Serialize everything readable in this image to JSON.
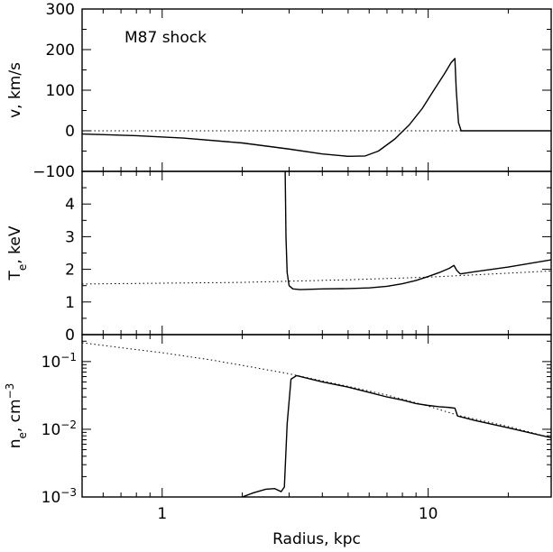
{
  "chart_data": [
    {
      "type": "line",
      "panel": "velocity",
      "annotation": "M87 shock",
      "ylabel": "v, km/s",
      "xscale": "log",
      "xlim": [
        0.5,
        29
      ],
      "ylim": [
        -100,
        300
      ],
      "yticks": [
        -100,
        0,
        100,
        200,
        300
      ],
      "series": [
        {
          "style": "solid",
          "x": [
            0.5,
            0.8,
            1.2,
            2.0,
            3.0,
            4.0,
            5.0,
            5.8,
            6.5,
            7.5,
            8.5,
            9.5,
            10.5,
            11.5,
            12.2,
            12.6,
            12.75,
            13.0,
            13.3,
            15,
            20,
            29
          ],
          "y": [
            -8,
            -12,
            -18,
            -30,
            -45,
            -57,
            -63,
            -62,
            -50,
            -20,
            15,
            55,
            100,
            140,
            168,
            178,
            100,
            20,
            0,
            0,
            0,
            0
          ]
        },
        {
          "style": "dotted",
          "x": [
            0.5,
            29
          ],
          "y": [
            0,
            0
          ]
        }
      ]
    },
    {
      "type": "line",
      "panel": "temperature",
      "ylabel": "T",
      "ylabel_sub": "e",
      "ylabel_unit": ", keV",
      "xscale": "log",
      "xlim": [
        0.5,
        29
      ],
      "ylim": [
        0,
        5
      ],
      "yticks": [
        0,
        1,
        2,
        3,
        4
      ],
      "series": [
        {
          "style": "solid",
          "x": [
            2.9,
            2.92,
            2.95,
            3.0,
            3.1,
            3.3,
            4.0,
            5.0,
            6.0,
            7.0,
            8.0,
            9.0,
            10.0,
            11.0,
            12.0,
            12.5,
            12.8,
            13.2,
            15,
            20,
            29
          ],
          "y": [
            5.0,
            3.0,
            1.9,
            1.5,
            1.4,
            1.38,
            1.4,
            1.41,
            1.43,
            1.48,
            1.56,
            1.66,
            1.78,
            1.9,
            2.03,
            2.12,
            1.97,
            1.86,
            1.93,
            2.07,
            2.29
          ]
        },
        {
          "style": "dotted",
          "x": [
            0.5,
            2.0,
            5.0,
            10.0,
            15.0,
            29.0
          ],
          "y": [
            1.55,
            1.6,
            1.68,
            1.76,
            1.83,
            1.95
          ]
        }
      ]
    },
    {
      "type": "line",
      "panel": "density",
      "ylabel": "n",
      "ylabel_sub": "e",
      "ylabel_unit": ", cm",
      "ylabel_sup": "−3",
      "xlabel": "Radius, kpc",
      "xscale": "log",
      "yscale": "log",
      "xlim": [
        0.5,
        29
      ],
      "ylim": [
        0.001,
        0.25
      ],
      "yticks": [
        0.001,
        0.01,
        0.1
      ],
      "ytick_labels": [
        {
          "base": "10",
          "exp": "−3"
        },
        {
          "base": "10",
          "exp": "−2"
        },
        {
          "base": "10",
          "exp": "−1"
        }
      ],
      "xticks": [
        1,
        10
      ],
      "xtick_labels": [
        "1",
        "10"
      ],
      "series": [
        {
          "style": "solid",
          "x": [
            2.0,
            2.2,
            2.45,
            2.65,
            2.8,
            2.88,
            2.95,
            3.05,
            3.2,
            4.0,
            5.0,
            6.0,
            7.0,
            8.0,
            9.0,
            10.0,
            11.0,
            12.0,
            12.6,
            12.9,
            15,
            20,
            29
          ],
          "y": [
            0.001,
            0.00115,
            0.0013,
            0.00133,
            0.0012,
            0.0014,
            0.012,
            0.055,
            0.062,
            0.05,
            0.042,
            0.035,
            0.03,
            0.027,
            0.024,
            0.0225,
            0.0215,
            0.021,
            0.0205,
            0.0157,
            0.0135,
            0.0105,
            0.0075
          ]
        },
        {
          "style": "dotted",
          "x": [
            0.5,
            0.75,
            1.0,
            1.5,
            2.0,
            3.0,
            5.0,
            7.0,
            10.0,
            13.0,
            20.0,
            29.0
          ],
          "y": [
            0.19,
            0.155,
            0.135,
            0.107,
            0.088,
            0.066,
            0.043,
            0.032,
            0.022,
            0.016,
            0.011,
            0.0075
          ]
        }
      ]
    }
  ]
}
